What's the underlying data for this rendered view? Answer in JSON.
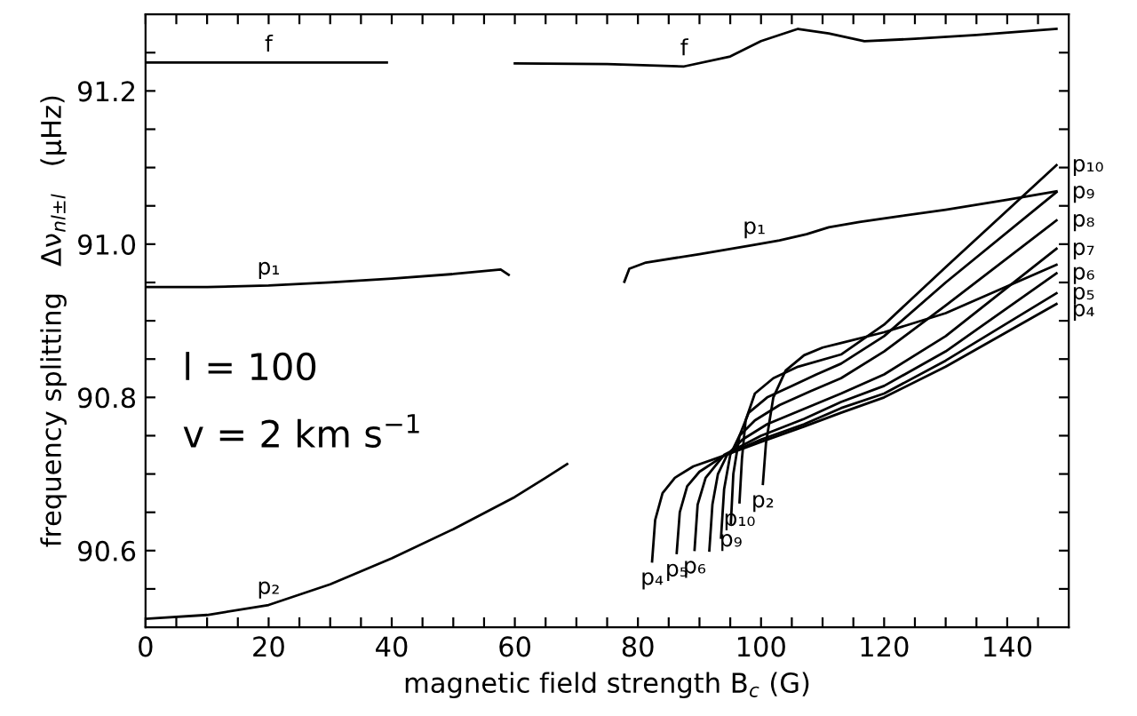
{
  "chart_data": {
    "type": "line",
    "xlabel": "magnetic field strength B$_{c}$ (G)",
    "ylabel": "frequency splitting   Δν$_{nl±l}$   (μHz)",
    "xlim": [
      0,
      150
    ],
    "ylim": [
      90.5,
      91.3
    ],
    "xticks": [
      0,
      {
        "value": 5,
        "label": null
      },
      {
        "value": 10,
        "label": null
      },
      {
        "value": 15,
        "label": null
      },
      20,
      {
        "value": 25,
        "label": null
      },
      {
        "value": 30,
        "label": null
      },
      {
        "value": 35,
        "label": null
      },
      40,
      {
        "value": 45,
        "label": null
      },
      {
        "value": 50,
        "label": null
      },
      {
        "value": 55,
        "label": null
      },
      60,
      {
        "value": 65,
        "label": null
      },
      {
        "value": 70,
        "label": null
      },
      {
        "value": 75,
        "label": null
      },
      80,
      {
        "value": 85,
        "label": null
      },
      {
        "value": 90,
        "label": null
      },
      {
        "value": 95,
        "label": null
      },
      100,
      {
        "value": 105,
        "label": null
      },
      {
        "value": 110,
        "label": null
      },
      {
        "value": 115,
        "label": null
      },
      120,
      {
        "value": 125,
        "label": null
      },
      {
        "value": 130,
        "label": null
      },
      {
        "value": 135,
        "label": null
      },
      140,
      {
        "value": 145,
        "label": null
      }
    ],
    "yticks": [
      {
        "value": 90.55,
        "label": null
      },
      90.6,
      {
        "value": 90.65,
        "label": null
      },
      {
        "value": 90.7,
        "label": null
      },
      {
        "value": 90.75,
        "label": null
      },
      90.8,
      {
        "value": 90.85,
        "label": null
      },
      {
        "value": 90.9,
        "label": null
      },
      {
        "value": 90.95,
        "label": null
      },
      {
        "value": 91.0,
        "label": "91.0"
      },
      {
        "value": 91.05,
        "label": null
      },
      {
        "value": 91.1,
        "label": null
      },
      {
        "value": 91.15,
        "label": null
      },
      91.2,
      {
        "value": 91.25,
        "label": null
      }
    ],
    "grid": false,
    "legend": false,
    "marker": "none",
    "line_style": "solid",
    "series": [
      {
        "color": "#000000",
        "x": [
          0,
          10,
          20,
          30,
          39.2,
          50.9,
          60,
          75,
          87.5,
          95,
          100,
          106,
          111,
          116.8,
          125,
          135,
          148
        ],
        "values": [
          91.237,
          91.237,
          91.237,
          91.237,
          91.237,
          null,
          91.236,
          91.235,
          91.232,
          91.245,
          91.265,
          91.281,
          91.275,
          91.265,
          91.268,
          91.273,
          91.281
        ]
      },
      {
        "color": "#000000",
        "x": [
          0,
          10,
          20,
          30,
          40,
          50,
          57.7,
          59,
          68,
          77.8,
          78.6,
          81.3,
          90,
          98.9,
          103,
          107.4,
          111,
          116,
          122,
          130,
          140,
          148
        ],
        "values": [
          90.944,
          90.944,
          90.946,
          90.95,
          90.955,
          90.961,
          90.967,
          90.96,
          null,
          90.951,
          90.968,
          90.976,
          90.987,
          90.999,
          91.005,
          91.013,
          91.022,
          91.029,
          91.036,
          91.045,
          91.058,
          91.069
        ]
      },
      {
        "color": "#000000",
        "x": [
          0,
          10,
          20,
          30,
          40,
          50,
          60,
          65,
          68.5,
          85,
          100.3,
          100.8,
          102,
          104,
          107,
          110,
          113,
          120,
          130,
          148
        ],
        "values": [
          90.511,
          90.516,
          90.529,
          90.556,
          90.59,
          90.628,
          90.67,
          90.695,
          90.713,
          null,
          90.687,
          90.74,
          90.8,
          90.835,
          90.855,
          90.865,
          90.871,
          90.885,
          90.91,
          90.973
        ]
      },
      {
        "color": "#000000",
        "x": [
          82.3,
          82.8,
          84,
          86,
          89,
          94,
          100,
          107,
          113,
          120,
          130,
          148
        ],
        "values": [
          90.586,
          90.64,
          90.675,
          90.695,
          90.71,
          90.724,
          90.742,
          90.762,
          90.78,
          90.8,
          90.84,
          90.922
        ]
      },
      {
        "color": "#000000",
        "x": [
          86.3,
          86.8,
          88,
          90,
          94,
          100,
          107,
          113,
          120,
          130,
          148
        ],
        "values": [
          90.597,
          90.65,
          90.684,
          90.703,
          90.724,
          90.745,
          90.765,
          90.786,
          90.805,
          90.848,
          90.936
        ]
      },
      {
        "color": "#000000",
        "x": [
          89.2,
          89.7,
          91,
          94,
          100,
          107,
          113,
          120,
          130,
          148
        ],
        "values": [
          90.601,
          90.66,
          90.695,
          90.725,
          90.75,
          90.772,
          90.794,
          90.815,
          90.86,
          90.962
        ]
      },
      {
        "color": "#000000",
        "x": [
          91.6,
          92.1,
          93,
          94.5,
          97,
          101,
          107,
          113,
          120,
          130,
          148
        ],
        "values": [
          90.6,
          90.66,
          90.7,
          90.725,
          90.745,
          90.765,
          90.785,
          90.805,
          90.83,
          90.88,
          90.994
        ]
      },
      {
        "color": "#000000",
        "x": [
          93.5,
          94,
          95,
          96.5,
          99,
          103,
          108,
          113,
          120,
          130,
          148
        ],
        "values": [
          90.617,
          90.68,
          90.725,
          90.75,
          90.77,
          90.79,
          90.808,
          90.825,
          90.86,
          90.92,
          91.031
        ]
      },
      {
        "color": "#000000",
        "x": [
          95.1,
          95.5,
          96.5,
          98,
          101,
          105,
          109,
          113,
          120,
          130,
          148
        ],
        "values": [
          90.636,
          90.7,
          90.75,
          90.78,
          90.8,
          90.815,
          90.83,
          90.844,
          90.88,
          90.95,
          91.068
        ]
      },
      {
        "color": "#000000",
        "x": [
          96.5,
          96.9,
          97.5,
          99,
          102,
          106,
          113,
          120,
          130,
          148
        ],
        "values": [
          90.663,
          90.72,
          90.77,
          90.805,
          90.825,
          90.84,
          90.856,
          90.895,
          90.97,
          91.103
        ]
      }
    ],
    "annotations": [
      "l = 100",
      "v = 2 km s$^{−1}$",
      {
        "text": "f",
        "x": 20,
        "y": 91.237
      },
      {
        "text": "f",
        "x": 87.5,
        "y": 91.232
      },
      {
        "text": "p₁",
        "x": 20,
        "y": 90.946
      },
      {
        "text": "p₁",
        "x": 98.9,
        "y": 90.999
      },
      {
        "text": "p₂",
        "x": 20,
        "y": 90.529
      },
      {
        "text": "p₁₀",
        "x": 148,
        "y": 91.103
      },
      {
        "text": "p₉",
        "x": 148,
        "y": 91.068
      },
      {
        "text": "p₈",
        "x": 148,
        "y": 91.031
      },
      {
        "text": "p₇",
        "x": 148,
        "y": 90.994
      },
      {
        "text": "p₆",
        "x": 148,
        "y": 90.962
      },
      {
        "text": "p₅",
        "x": 148,
        "y": 90.936
      },
      {
        "text": "p₄",
        "x": 148,
        "y": 90.922
      },
      {
        "text": "p₄",
        "x": 82.3,
        "y": 90.586
      },
      {
        "text": "p₅",
        "x": 86.3,
        "y": 90.597
      },
      {
        "text": "p₆",
        "x": 89.2,
        "y": 90.601
      },
      {
        "text": "p₉",
        "x": 95.1,
        "y": 90.636
      },
      {
        "text": "p₁₀",
        "x": 96.5,
        "y": 90.663
      },
      {
        "text": "p₂",
        "x": 100.3,
        "y": 90.687
      }
    ]
  }
}
